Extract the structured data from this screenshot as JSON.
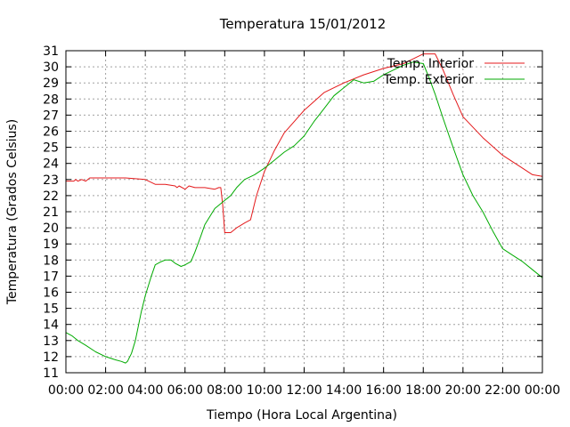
{
  "chart_data": {
    "type": "line",
    "title": "Temperatura 15/01/2012",
    "xlabel": "Tiempo (Hora Local Argentina)",
    "ylabel": "Temperatura (Grados Celsius)",
    "x_unit": "hours",
    "xlim": [
      0,
      24
    ],
    "ylim": [
      11,
      31
    ],
    "x_ticks": [
      "00:00",
      "02:00",
      "04:00",
      "06:00",
      "08:00",
      "10:00",
      "12:00",
      "14:00",
      "16:00",
      "18:00",
      "20:00",
      "22:00",
      "00:00"
    ],
    "y_ticks": [
      11,
      12,
      13,
      14,
      15,
      16,
      17,
      18,
      19,
      20,
      21,
      22,
      23,
      24,
      25,
      26,
      27,
      28,
      29,
      30,
      31
    ],
    "grid": true,
    "legend_position": "top-right",
    "series": [
      {
        "name": "Temp. Interior",
        "color": "#e41a1c",
        "x": [
          0,
          0.4,
          0.5,
          0.6,
          0.8,
          1.0,
          1.2,
          2.0,
          3.0,
          4.0,
          4.5,
          5.0,
          5.5,
          5.6,
          5.7,
          6.0,
          6.2,
          6.5,
          7.0,
          7.5,
          7.7,
          7.8,
          7.9,
          8.0,
          8.3,
          8.6,
          9.0,
          9.3,
          9.6,
          10.0,
          10.5,
          11.0,
          12.0,
          13.0,
          14.0,
          15.0,
          16.0,
          17.0,
          17.5,
          18.0,
          18.3,
          18.6,
          19.0,
          19.5,
          20.0,
          21.0,
          22.0,
          23.0,
          23.5,
          24.0
        ],
        "y": [
          22.9,
          22.9,
          23.0,
          22.9,
          23.0,
          22.9,
          23.1,
          23.1,
          23.1,
          23.0,
          22.7,
          22.7,
          22.6,
          22.5,
          22.6,
          22.4,
          22.6,
          22.5,
          22.5,
          22.4,
          22.5,
          22.5,
          21.4,
          19.7,
          19.7,
          20.0,
          20.3,
          20.5,
          22.0,
          23.5,
          24.8,
          25.9,
          27.3,
          28.4,
          29.0,
          29.5,
          29.9,
          30.2,
          30.5,
          30.8,
          30.8,
          30.8,
          29.8,
          28.3,
          26.9,
          25.6,
          24.5,
          23.7,
          23.3,
          23.2
        ]
      },
      {
        "name": "Temp. Exterior",
        "color": "#00aa00",
        "x": [
          0,
          0.3,
          0.6,
          1.0,
          1.5,
          2.0,
          2.5,
          2.8,
          3.0,
          3.1,
          3.3,
          3.5,
          3.8,
          4.0,
          4.3,
          4.5,
          4.8,
          5.0,
          5.3,
          5.5,
          5.8,
          6.0,
          6.3,
          6.5,
          6.8,
          7.0,
          7.3,
          7.5,
          7.8,
          8.0,
          8.3,
          8.6,
          9.0,
          9.5,
          10.0,
          10.5,
          11.0,
          11.5,
          12.0,
          12.5,
          13.0,
          13.5,
          14.0,
          14.5,
          15.0,
          15.5,
          16.0,
          16.5,
          17.0,
          17.5,
          18.0,
          18.3,
          18.6,
          19.0,
          19.5,
          20.0,
          20.5,
          21.0,
          21.5,
          22.0,
          22.5,
          23.0,
          23.5,
          24.0
        ],
        "y": [
          13.5,
          13.3,
          13.0,
          12.7,
          12.3,
          12.0,
          11.8,
          11.7,
          11.6,
          11.7,
          12.2,
          13.0,
          14.8,
          15.8,
          17.0,
          17.7,
          17.9,
          18.0,
          18.0,
          17.8,
          17.6,
          17.7,
          17.9,
          18.5,
          19.5,
          20.2,
          20.8,
          21.2,
          21.5,
          21.7,
          22.0,
          22.5,
          23.0,
          23.3,
          23.7,
          24.2,
          24.7,
          25.1,
          25.7,
          26.6,
          27.4,
          28.2,
          28.7,
          29.2,
          29.0,
          29.1,
          29.5,
          29.8,
          30.1,
          30.3,
          30.2,
          29.3,
          28.3,
          26.8,
          25.0,
          23.3,
          22.0,
          21.0,
          19.8,
          18.7,
          18.3,
          17.9,
          17.4,
          16.9
        ]
      }
    ]
  }
}
